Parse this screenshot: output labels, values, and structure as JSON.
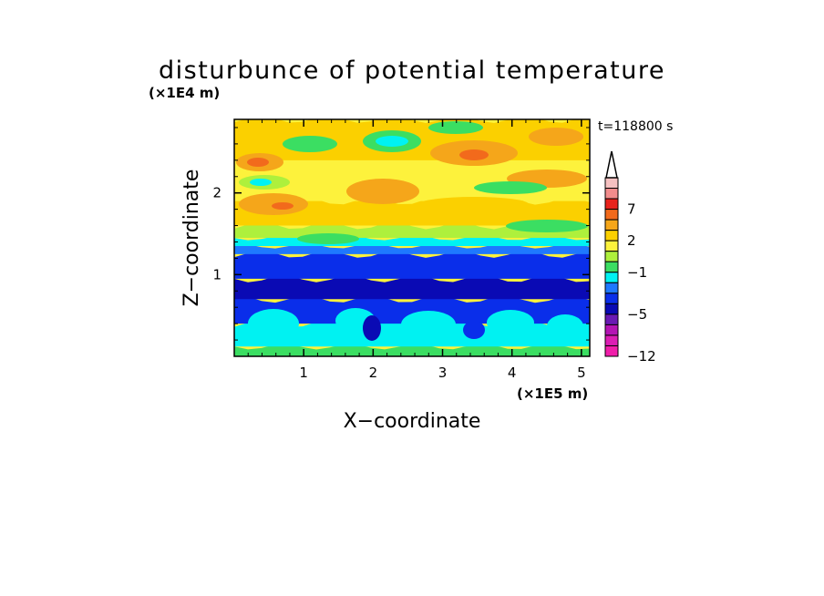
{
  "chart_data": {
    "type": "heatmap",
    "title": "disturbunce of potential temperature",
    "xlabel": "X−coordinate",
    "ylabel": "Z−coordinate",
    "x_unit": "(×1E5 m)",
    "y_unit": "(×1E4 m)",
    "time_label": "t=118800 s",
    "x_ticks": [
      "1",
      "2",
      "3",
      "4",
      "5"
    ],
    "y_ticks": [
      "1",
      "2"
    ],
    "xlim": [
      0,
      5.12
    ],
    "ylim": [
      0,
      2.9
    ],
    "colorbar": {
      "ticks": [
        "7",
        "2",
        "−1",
        "−5",
        "−12"
      ],
      "levels": [
        {
          "value": 10,
          "color": "#f6c1c1"
        },
        {
          "value": 8,
          "color": "#f28c8c"
        },
        {
          "value": 7,
          "color": "#e8231c"
        },
        {
          "value": 5,
          "color": "#f26a1c"
        },
        {
          "value": 3,
          "color": "#f5a61a"
        },
        {
          "value": 2,
          "color": "#fbd000"
        },
        {
          "value": 1,
          "color": "#fdf23c"
        },
        {
          "value": 0,
          "color": "#aef03c"
        },
        {
          "value": -1,
          "color": "#3bde62"
        },
        {
          "value": -2,
          "color": "#00f2f2"
        },
        {
          "value": -3,
          "color": "#1e78ff"
        },
        {
          "value": -4,
          "color": "#0a2eea"
        },
        {
          "value": -5,
          "color": "#0a0ab4"
        },
        {
          "value": -7,
          "color": "#6a1ab4"
        },
        {
          "value": -9,
          "color": "#b414b4"
        },
        {
          "value": -11,
          "color": "#dc1eb4"
        },
        {
          "value": -12,
          "color": "#f01eaa"
        }
      ],
      "extend": "max"
    },
    "vertical_profile": [
      {
        "z": 0.12,
        "value": -1
      },
      {
        "z": 0.4,
        "value": -2
      },
      {
        "z": 0.7,
        "value": -4
      },
      {
        "z": 0.95,
        "value": -5
      },
      {
        "z": 1.25,
        "value": -4
      },
      {
        "z": 1.35,
        "value": -3
      },
      {
        "z": 1.45,
        "value": -2
      },
      {
        "z": 1.6,
        "value": 0
      },
      {
        "z": 1.9,
        "value": 2
      },
      {
        "z": 2.4,
        "value": 1
      },
      {
        "z": 2.9,
        "value": 2
      }
    ]
  }
}
